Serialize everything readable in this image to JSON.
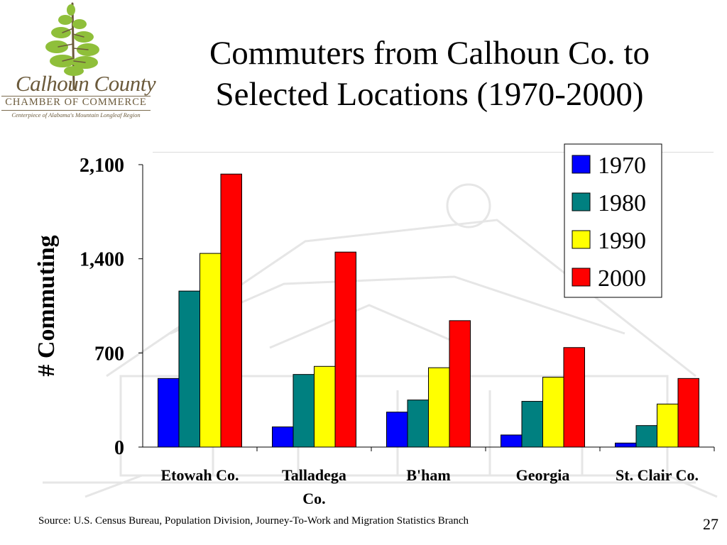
{
  "slide": {
    "title_line1": "Commuters from Calhoun Co. to",
    "title_line2": "Selected Locations (1970-2000)",
    "source": "Source: U.S. Census Bureau, Population Division, Journey-To-Work and  Migration Statistics Branch",
    "page_number": "27"
  },
  "logo": {
    "name": "Calhoun County",
    "subtitle": "CHAMBER OF COMMERCE",
    "tagline": "Centerpiece of Alabama's Mountain Longleaf Region",
    "color": "#6b5a3b",
    "tree_color": "#8fbf3a"
  },
  "chart_data": {
    "type": "bar",
    "title": "",
    "xlabel": "",
    "ylabel": "# Commuting",
    "ylim": [
      0,
      2100
    ],
    "yticks": [
      0,
      700,
      1400,
      2100
    ],
    "ytick_labels": [
      "0",
      "700",
      "1,400",
      "2,100"
    ],
    "categories": [
      "Etowah Co.",
      "Talladega Co.",
      "B'ham",
      "Georgia",
      "St. Clair Co."
    ],
    "category_lines": [
      [
        "Etowah Co."
      ],
      [
        "Talladega",
        "Co."
      ],
      [
        "B'ham"
      ],
      [
        "Georgia"
      ],
      [
        "St. Clair Co."
      ]
    ],
    "series": [
      {
        "name": "1970",
        "color": "#0000ff",
        "values": [
          510,
          150,
          260,
          90,
          30
        ]
      },
      {
        "name": "1980",
        "color": "#008080",
        "values": [
          1160,
          540,
          350,
          340,
          160
        ]
      },
      {
        "name": "1990",
        "color": "#ffff00",
        "values": [
          1440,
          600,
          590,
          520,
          320
        ]
      },
      {
        "name": "2000",
        "color": "#ff0000",
        "values": [
          2030,
          1450,
          940,
          740,
          510
        ]
      }
    ],
    "legend_position": "top-right",
    "grid": false
  }
}
